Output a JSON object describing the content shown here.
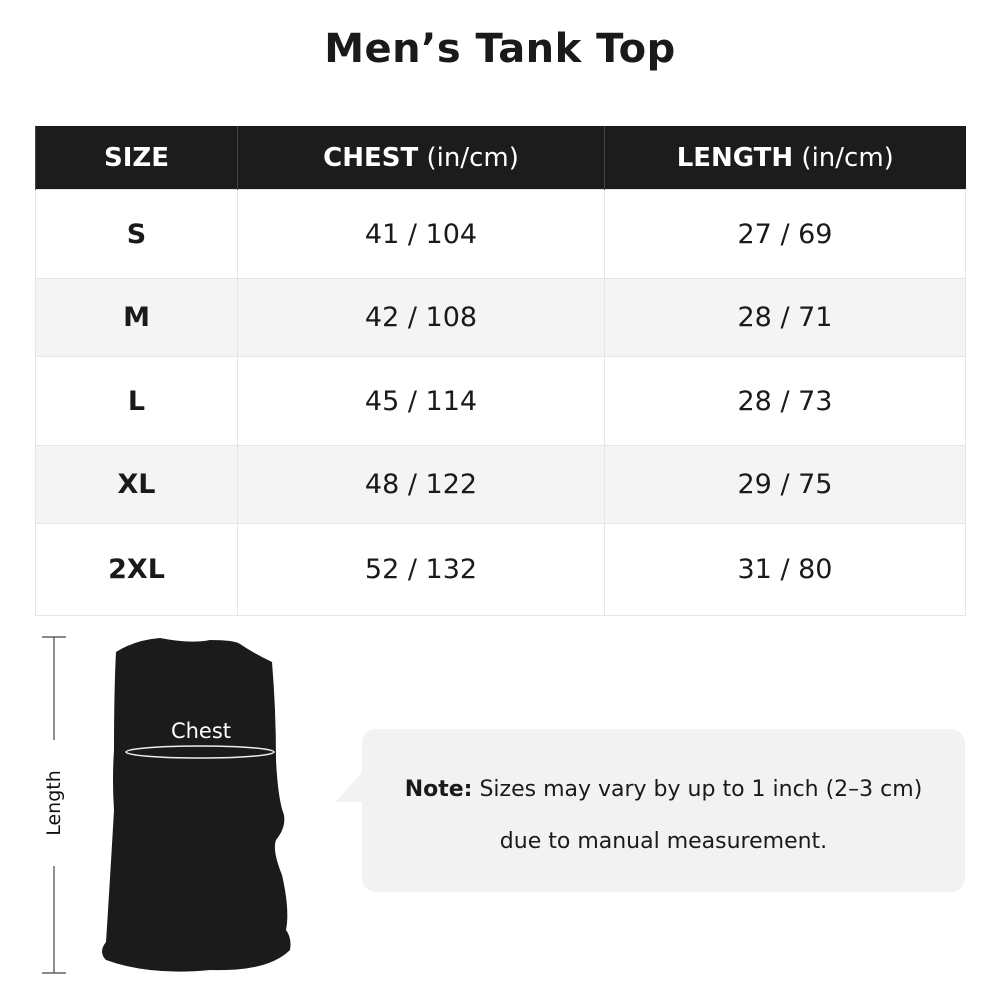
{
  "title": "Men’s Tank Top",
  "table": {
    "headers": [
      {
        "label": "SIZE",
        "unit": ""
      },
      {
        "label": "CHEST",
        "unit": " (in/cm)"
      },
      {
        "label": "LENGTH",
        "unit": " (in/cm)"
      }
    ],
    "rows": [
      {
        "size": "S",
        "chest": "41 / 104",
        "length": "27 / 69"
      },
      {
        "size": "M",
        "chest": "42 / 108",
        "length": "28 / 71"
      },
      {
        "size": "L",
        "chest": "45 / 114",
        "length": "28 / 73"
      },
      {
        "size": "XL",
        "chest": "48 / 122",
        "length": "29 / 75"
      },
      {
        "size": "2XL",
        "chest": "52 / 132",
        "length": "31 / 80"
      }
    ]
  },
  "diagram": {
    "chest_label": "Chest",
    "length_label": "Length"
  },
  "note": {
    "prefix": "Note:",
    "line1": " Sizes may vary by up to 1 inch (2–3 cm)",
    "line2": "due to manual measurement."
  }
}
